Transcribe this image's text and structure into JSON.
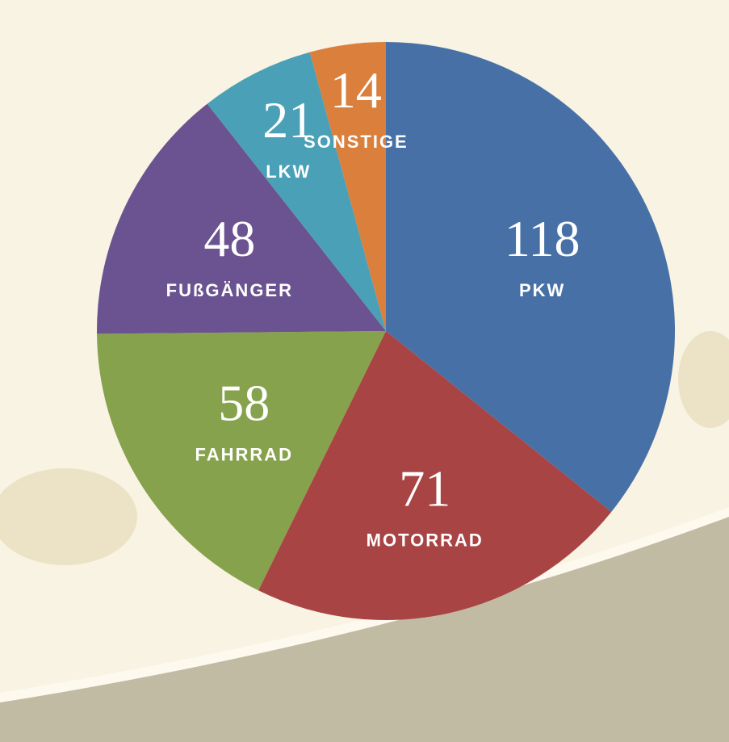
{
  "chart_data": {
    "type": "pie",
    "categories": [
      "PKW",
      "MOTORRAD",
      "FAHRRAD",
      "FUßGÄNGER",
      "LKW",
      "SONSTIGE"
    ],
    "values": [
      118,
      71,
      58,
      48,
      21,
      14
    ],
    "colors": [
      "#4771a6",
      "#a94444",
      "#87a24c",
      "#6b5290",
      "#4aa0b6",
      "#db7f3c"
    ]
  }
}
